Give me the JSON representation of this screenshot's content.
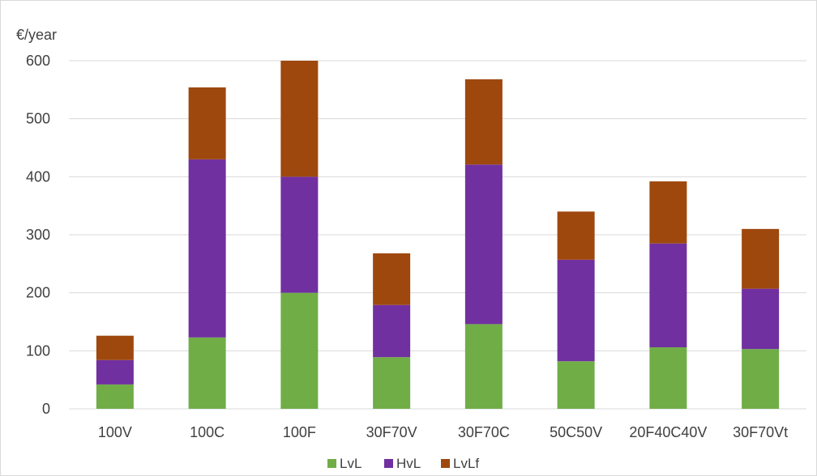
{
  "chart_data": {
    "type": "bar",
    "stacked": true,
    "title": "",
    "xlabel": "",
    "ylabel": "€/year",
    "ylim": [
      0,
      600
    ],
    "yticks": [
      0,
      100,
      200,
      300,
      400,
      500,
      600
    ],
    "grid": true,
    "legend_position": "bottom",
    "categories": [
      "100V",
      "100C",
      "100F",
      "30F70V",
      "30F70C",
      "50C50V",
      "20F40C40V",
      "30F70Vt"
    ],
    "series": [
      {
        "name": "LvL",
        "color": "#70ad47",
        "values": [
          42,
          123,
          200,
          89,
          146,
          82,
          106,
          103
        ]
      },
      {
        "name": "HvL",
        "color": "#7030a0",
        "values": [
          42,
          307,
          200,
          90,
          275,
          175,
          179,
          104
        ]
      },
      {
        "name": "LvLf",
        "color": "#9e480e",
        "values": [
          42,
          124,
          200,
          89,
          147,
          83,
          107,
          103
        ]
      }
    ],
    "gridline_color": "#d9d9d9"
  }
}
